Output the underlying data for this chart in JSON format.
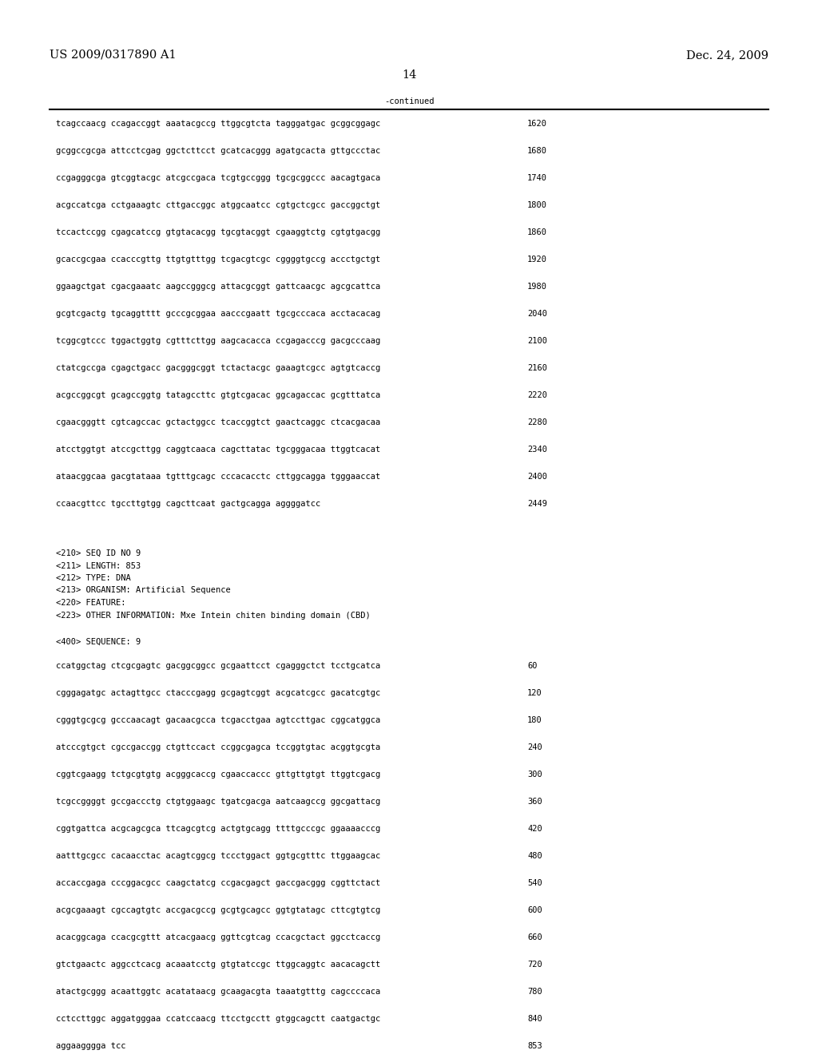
{
  "header_left": "US 2009/0317890 A1",
  "header_right": "Dec. 24, 2009",
  "page_number": "14",
  "continued_label": "-continued",
  "background_color": "#ffffff",
  "text_color": "#000000",
  "font_size_header": 10.5,
  "font_size_body": 7.5,
  "font_size_page": 10.5,
  "sequence_lines_top": [
    [
      "tcagccaacg ccagaccggt aaatacgccg ttggcgtcta tagggatgac gcggcggagc",
      "1620"
    ],
    [
      "gcggccgcga attcctcgag ggctcttcct gcatcacggg agatgcacta gttgccctac",
      "1680"
    ],
    [
      "ccgagggcga gtcggtacgc atcgccgaca tcgtgccggg tgcgcggccc aacagtgaca",
      "1740"
    ],
    [
      "acgccatcga cctgaaagtc cttgaccggc atggcaatcc cgtgctcgcc gaccggctgt",
      "1800"
    ],
    [
      "tccactccgg cgagcatccg gtgtacacgg tgcgtacggt cgaaggtctg cgtgtgacgg",
      "1860"
    ],
    [
      "gcaccgcgaa ccacccgttg ttgtgtttgg tcgacgtcgc cggggtgccg accctgctgt",
      "1920"
    ],
    [
      "ggaagctgat cgacgaaatc aagccgggcg attacgcggt gattcaacgc agcgcattca",
      "1980"
    ],
    [
      "gcgtcgactg tgcaggtttt gcccgcggaa aacccgaatt tgcgcccaca acctacacag",
      "2040"
    ],
    [
      "tcggcgtccc tggactggtg cgtttcttgg aagcacacca ccgagacccg gacgcccaag",
      "2100"
    ],
    [
      "ctatcgccga cgagctgacc gacgggcggt tctactacgc gaaagtcgcc agtgtcaccg",
      "2160"
    ],
    [
      "acgccggcgt gcagccggtg tatagccttc gtgtcgacac ggcagaccac gcgtttatca",
      "2220"
    ],
    [
      "cgaacgggtt cgtcagccac gctactggcc tcaccggtct gaactcaggc ctcacgacaa",
      "2280"
    ],
    [
      "atcctggtgt atccgcttgg caggtcaaca cagcttatac tgcgggacaa ttggtcacat",
      "2340"
    ],
    [
      "ataacggcaa gacgtataaa tgtttgcagc cccacacctc cttggcagga tgggaaccat",
      "2400"
    ],
    [
      "ccaacgttcc tgccttgtgg cagcttcaat gactgcagga aggggatcc",
      "2449"
    ]
  ],
  "metadata_lines": [
    "<210> SEQ ID NO 9",
    "<211> LENGTH: 853",
    "<212> TYPE: DNA",
    "<213> ORGANISM: Artificial Sequence",
    "<220> FEATURE:",
    "<223> OTHER INFORMATION: Mxe Intein chiten binding domain (CBD)"
  ],
  "sequence_label": "<400> SEQUENCE: 9",
  "sequence_lines_bottom": [
    [
      "ccatggctag ctcgcgagtc gacggcggcc gcgaattcct cgagggctct tcctgcatca",
      "60"
    ],
    [
      "cgggagatgc actagttgcc ctacccgagg gcgagtcggt acgcatcgcc gacatcgtgc",
      "120"
    ],
    [
      "cgggtgcgcg gcccaacagt gacaacgcca tcgacctgaa agtccttgac cggcatggca",
      "180"
    ],
    [
      "atcccgtgct cgccgaccgg ctgttccact ccggcgagca tccggtgtac acggtgcgta",
      "240"
    ],
    [
      "cggtcgaagg tctgcgtgtg acgggcaccg cgaaccaccc gttgttgtgt ttggtcgacg",
      "300"
    ],
    [
      "tcgccggggt gccgaccctg ctgtggaagc tgatcgacga aatcaagccg ggcgattacg",
      "360"
    ],
    [
      "cggtgattca acgcagcgca ttcagcgtcg actgtgcagg ttttgcccgc ggaaaacccg",
      "420"
    ],
    [
      "aatttgcgcc cacaacctac acagtcggcg tccctggact ggtgcgtttc ttggaagcac",
      "480"
    ],
    [
      "accaccgaga cccggacgcc caagctatcg ccgacgagct gaccgacggg cggttctact",
      "540"
    ],
    [
      "acgcgaaagt cgccagtgtc accgacgccg gcgtgcagcc ggtgtatagc cttcgtgtcg",
      "600"
    ],
    [
      "acacggcaga ccacgcgttt atcacgaacg ggttcgtcag ccacgctact ggcctcaccg",
      "660"
    ],
    [
      "gtctgaactc aggcctcacg acaaatcctg gtgtatccgc ttggcaggtc aacacagctt",
      "720"
    ],
    [
      "atactgcggg acaattggtc acatataacg gcaagacgta taaatgtttg cagccccaca",
      "780"
    ],
    [
      "cctccttggc aggatgggaa ccatccaacg ttcctgcctt gtggcagctt caatgactgc",
      "840"
    ],
    [
      "aggaagggga tcc",
      "853"
    ]
  ]
}
